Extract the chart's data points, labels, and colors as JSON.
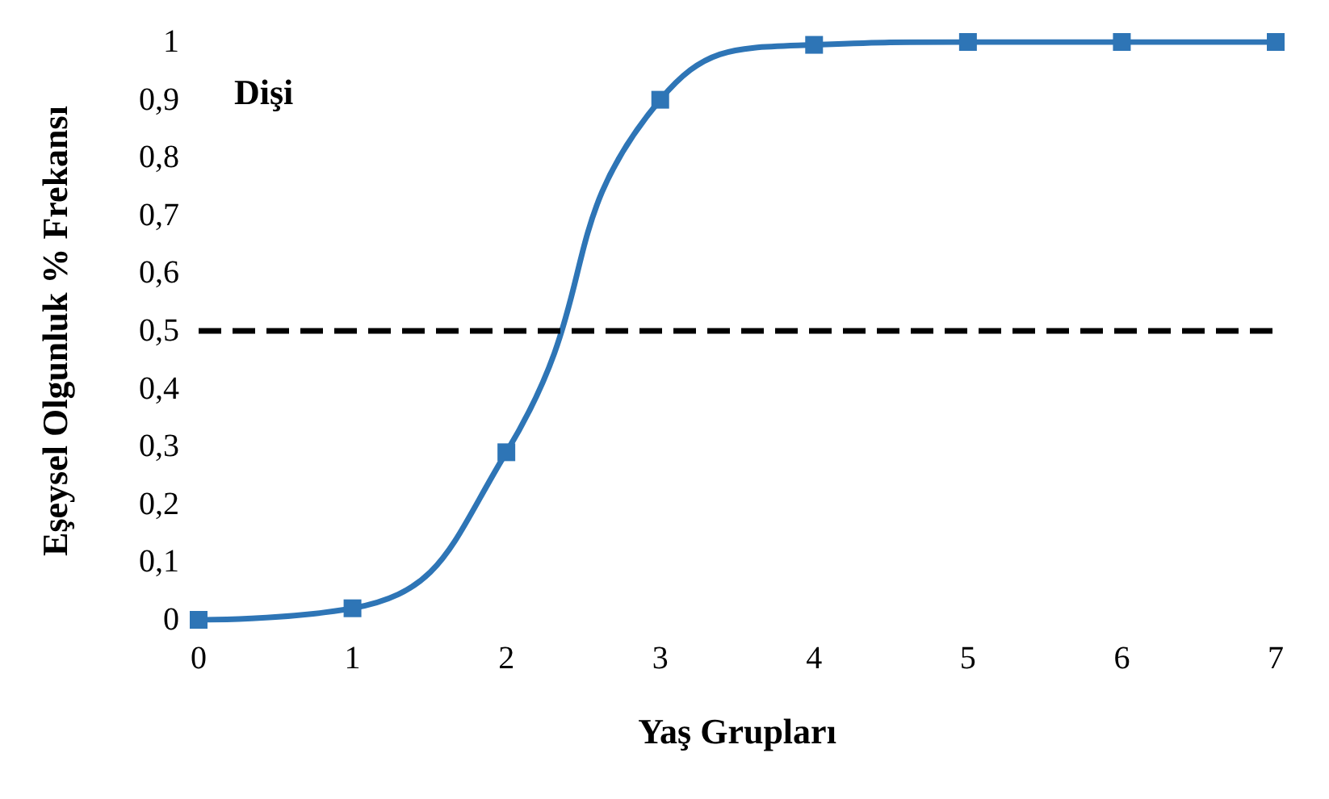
{
  "chart_data": {
    "type": "line",
    "xlabel": "Yaş Grupları",
    "ylabel": "Eşeysel Olgunluk % Frekansı",
    "annotations": [
      "Dişi"
    ],
    "x": [
      0,
      1,
      2,
      3,
      4,
      5,
      6,
      7
    ],
    "series": [
      {
        "color": "#2e75b6",
        "values": [
          0,
          0.02,
          0.29,
          0.9,
          0.995,
          1,
          1,
          1
        ]
      }
    ],
    "xlim": [
      0,
      7
    ],
    "xticks": [
      0,
      1,
      2,
      3,
      4,
      5,
      6,
      7
    ],
    "ylim": [
      0,
      1
    ],
    "yticks": [
      0,
      {
        "value": 0.1,
        "label": "0,1"
      },
      {
        "value": 0.2,
        "label": "0,2"
      },
      {
        "value": 0.3,
        "label": "0,3"
      },
      {
        "value": 0.4,
        "label": "0,4"
      },
      {
        "value": 0.5,
        "label": "0,5"
      },
      {
        "value": 0.6,
        "label": "0,6"
      },
      {
        "value": 0.7,
        "label": "0,7"
      },
      {
        "value": 0.8,
        "label": "0,8"
      },
      {
        "value": 0.9,
        "label": "0,9"
      },
      1
    ],
    "ref_lines": [
      {
        "axis": "y",
        "value": 0.5,
        "color": "#000000",
        "line_style": "dashed"
      }
    ],
    "grid": false,
    "marker": "square",
    "line_style": "solid"
  }
}
